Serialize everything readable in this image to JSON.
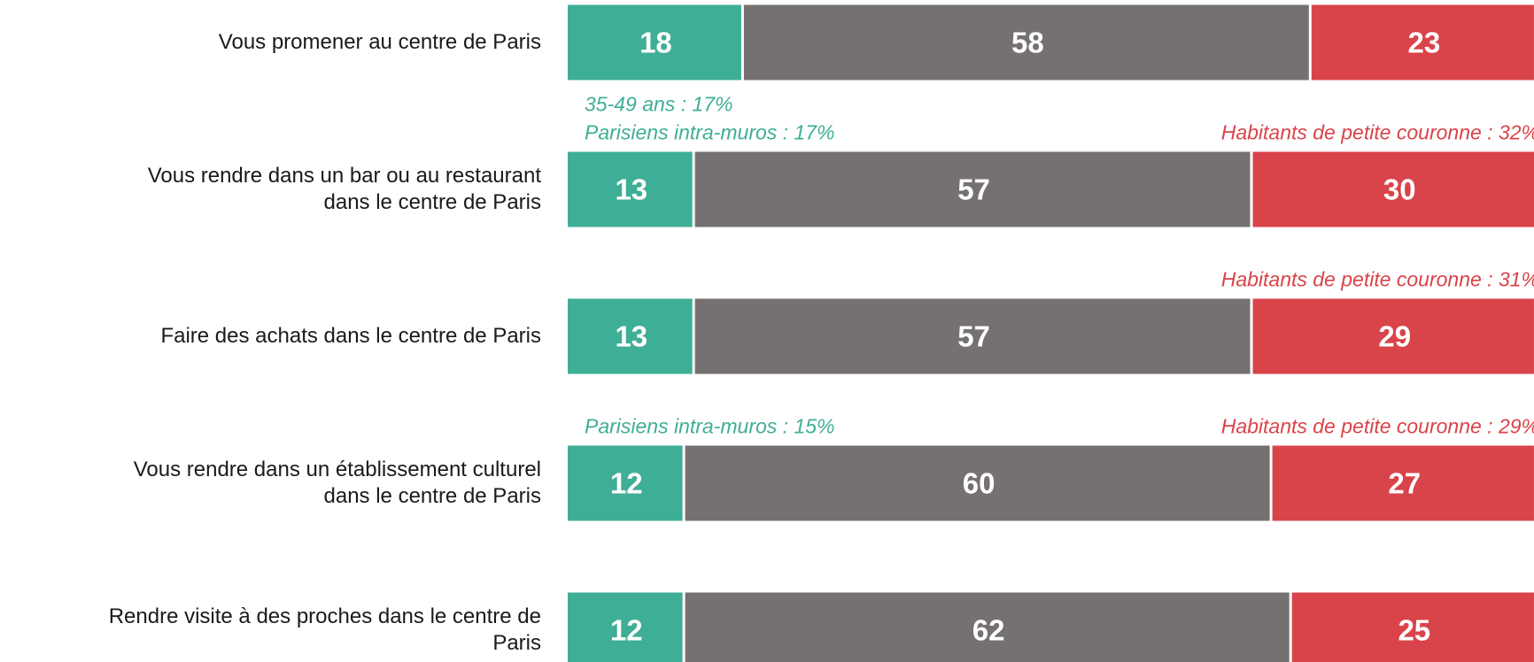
{
  "chart_data": {
    "type": "stacked_bar_horizontal",
    "categories": [
      "Vous promener au centre de Paris",
      "Vous rendre dans un bar ou au restaurant\ndans le centre de Paris",
      "Faire des achats dans le centre de Paris",
      "Vous rendre dans un établissement culturel\ndans le centre de Paris",
      "Rendre visite à des proches dans le centre de\nParis"
    ],
    "series": [
      {
        "color": "#3fae96",
        "values": [
          18,
          13,
          13,
          12,
          12
        ]
      },
      {
        "color": "#757170",
        "values": [
          58,
          57,
          57,
          60,
          62
        ]
      },
      {
        "color": "#d9434a",
        "values": [
          23,
          30,
          29,
          27,
          25
        ]
      }
    ],
    "annotations_left": {
      "color": "#3fae96",
      "items": [
        [],
        [
          "35-49 ans : 17%",
          "Parisiens intra-muros : 17%"
        ],
        [],
        [
          "Parisiens intra-muros : 15%"
        ],
        []
      ]
    },
    "annotations_right": {
      "color": "#d9434a",
      "items": [
        [],
        [
          "Habitants de petite couronne : 32%"
        ],
        [
          "Habitants de petite couronne : 31%"
        ],
        [
          "Habitants de petite couronne : 29%"
        ],
        []
      ]
    }
  }
}
